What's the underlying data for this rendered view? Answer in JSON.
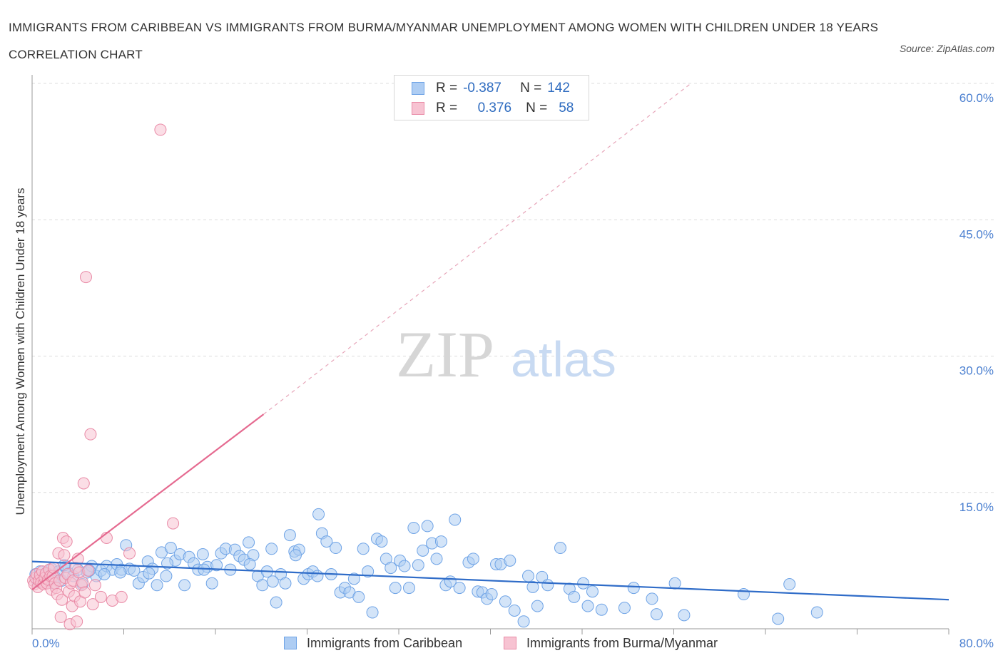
{
  "chart_data": {
    "type": "scatter",
    "title": "IMMIGRANTS FROM CARIBBEAN VS IMMIGRANTS FROM BURMA/MYANMAR UNEMPLOYMENT AMONG WOMEN WITH CHILDREN UNDER 18 YEARS CORRELATION CHART",
    "source": "Source: ZipAtlas.com",
    "ylabel": "Unemployment Among Women with Children Under 18 years",
    "xlim": [
      0,
      80
    ],
    "ylim": [
      0,
      60
    ],
    "x_tick_labels": {
      "left": "0.0%",
      "right": "80.0%"
    },
    "y_ticks": [
      15,
      30,
      45,
      60
    ],
    "y_tick_labels": [
      "15.0%",
      "30.0%",
      "45.0%",
      "60.0%"
    ],
    "watermark": {
      "zip": "ZIP",
      "atlas": "atlas"
    },
    "legend": [
      {
        "r_label": "R =",
        "r_value": "-0.387",
        "n_label": "N =",
        "n_value": "142"
      },
      {
        "r_label": "R =",
        "r_value": "0.376",
        "n_label": "N =",
        "n_value": "58"
      }
    ],
    "series": [
      {
        "name": "Immigrants from Caribbean",
        "color": "#6ea3e6",
        "fill": "#aecdf3",
        "trend": {
          "x0": 0,
          "y0": 7.4,
          "x1": 80,
          "y1": 3.2,
          "color": "#2f6cc8"
        },
        "points": [
          [
            0.3,
            6.0
          ],
          [
            0.5,
            5.2
          ],
          [
            0.7,
            6.3
          ],
          [
            0.9,
            5.5
          ],
          [
            1.1,
            5.9
          ],
          [
            1.3,
            6.1
          ],
          [
            1.5,
            5.4
          ],
          [
            1.7,
            6.6
          ],
          [
            2.0,
            5.7
          ],
          [
            2.3,
            6.3
          ],
          [
            2.6,
            5.3
          ],
          [
            2.9,
            6.8
          ],
          [
            3.2,
            6.1
          ],
          [
            3.6,
            5.8
          ],
          [
            4.0,
            6.5
          ],
          [
            4.4,
            4.9
          ],
          [
            4.8,
            6.2
          ],
          [
            5.2,
            6.9
          ],
          [
            5.6,
            5.8
          ],
          [
            6.0,
            6.4
          ],
          [
            6.5,
            6.9
          ],
          [
            7.0,
            6.5
          ],
          [
            7.4,
            7.1
          ],
          [
            7.8,
            6.5
          ],
          [
            8.2,
            9.2
          ],
          [
            8.5,
            6.6
          ],
          [
            8.9,
            6.4
          ],
          [
            9.3,
            5.0
          ],
          [
            9.7,
            5.7
          ],
          [
            10.1,
            7.4
          ],
          [
            10.5,
            6.6
          ],
          [
            10.9,
            4.8
          ],
          [
            11.3,
            8.4
          ],
          [
            11.7,
            5.8
          ],
          [
            12.1,
            8.9
          ],
          [
            12.5,
            7.5
          ],
          [
            12.9,
            8.2
          ],
          [
            13.3,
            4.8
          ],
          [
            13.7,
            7.9
          ],
          [
            14.1,
            7.2
          ],
          [
            14.5,
            6.5
          ],
          [
            14.9,
            8.2
          ],
          [
            15.3,
            6.8
          ],
          [
            15.7,
            5.0
          ],
          [
            16.1,
            7.0
          ],
          [
            16.5,
            8.3
          ],
          [
            16.9,
            8.8
          ],
          [
            17.3,
            6.5
          ],
          [
            17.7,
            8.7
          ],
          [
            18.1,
            8.0
          ],
          [
            18.5,
            7.6
          ],
          [
            18.9,
            9.5
          ],
          [
            19.3,
            8.1
          ],
          [
            19.7,
            5.8
          ],
          [
            20.1,
            4.8
          ],
          [
            20.5,
            6.3
          ],
          [
            20.9,
            8.8
          ],
          [
            21.3,
            2.9
          ],
          [
            21.7,
            6.0
          ],
          [
            22.1,
            5.0
          ],
          [
            22.5,
            10.3
          ],
          [
            22.9,
            8.5
          ],
          [
            23.3,
            8.7
          ],
          [
            23.7,
            5.5
          ],
          [
            24.1,
            6.0
          ],
          [
            24.5,
            6.3
          ],
          [
            24.9,
            5.8
          ],
          [
            25.3,
            10.5
          ],
          [
            25.7,
            9.6
          ],
          [
            26.1,
            6.0
          ],
          [
            26.5,
            8.9
          ],
          [
            26.9,
            4.0
          ],
          [
            27.3,
            4.5
          ],
          [
            27.7,
            4.0
          ],
          [
            28.1,
            5.5
          ],
          [
            28.5,
            3.5
          ],
          [
            28.9,
            8.8
          ],
          [
            29.3,
            6.3
          ],
          [
            29.7,
            1.8
          ],
          [
            30.1,
            9.9
          ],
          [
            30.5,
            9.6
          ],
          [
            30.9,
            7.7
          ],
          [
            31.3,
            6.7
          ],
          [
            31.7,
            4.5
          ],
          [
            32.1,
            7.5
          ],
          [
            32.5,
            6.9
          ],
          [
            32.9,
            4.5
          ],
          [
            33.3,
            11.1
          ],
          [
            33.7,
            7.0
          ],
          [
            34.1,
            8.6
          ],
          [
            34.5,
            11.3
          ],
          [
            34.9,
            9.4
          ],
          [
            35.3,
            7.7
          ],
          [
            35.7,
            9.6
          ],
          [
            36.1,
            4.8
          ],
          [
            36.5,
            5.2
          ],
          [
            36.9,
            12.0
          ],
          [
            37.3,
            4.5
          ],
          [
            38.1,
            7.3
          ],
          [
            38.5,
            7.7
          ],
          [
            38.9,
            4.1
          ],
          [
            39.3,
            4.0
          ],
          [
            39.7,
            3.3
          ],
          [
            40.1,
            3.8
          ],
          [
            40.5,
            7.1
          ],
          [
            40.9,
            7.1
          ],
          [
            41.3,
            3.0
          ],
          [
            41.7,
            7.5
          ],
          [
            42.1,
            2.0
          ],
          [
            42.9,
            0.8
          ],
          [
            43.3,
            5.8
          ],
          [
            43.7,
            4.6
          ],
          [
            44.1,
            2.5
          ],
          [
            44.5,
            5.7
          ],
          [
            45.0,
            4.8
          ],
          [
            46.1,
            8.9
          ],
          [
            46.9,
            4.4
          ],
          [
            47.3,
            3.5
          ],
          [
            48.1,
            5.0
          ],
          [
            48.5,
            2.5
          ],
          [
            48.9,
            4.1
          ],
          [
            49.7,
            2.1
          ],
          [
            51.7,
            2.3
          ],
          [
            52.5,
            4.5
          ],
          [
            54.1,
            3.3
          ],
          [
            54.5,
            1.6
          ],
          [
            56.1,
            5.0
          ],
          [
            56.9,
            1.5
          ],
          [
            62.1,
            3.8
          ],
          [
            65.1,
            1.1
          ],
          [
            66.1,
            4.9
          ],
          [
            68.5,
            1.8
          ],
          [
            23.0,
            8.1
          ],
          [
            25.0,
            12.6
          ],
          [
            15.0,
            6.5
          ],
          [
            19.0,
            7.1
          ],
          [
            21.0,
            5.2
          ],
          [
            10.2,
            6.1
          ],
          [
            7.7,
            6.2
          ],
          [
            11.8,
            7.2
          ],
          [
            6.3,
            6.0
          ],
          [
            5.0,
            6.4
          ],
          [
            2.8,
            7.0
          ],
          [
            1.9,
            5.0
          ]
        ]
      },
      {
        "name": "Immigrants from Burma/Myanmar",
        "color": "#e98aa6",
        "fill": "#f7c3d2",
        "trend": {
          "x0": 0,
          "y0": 4.3,
          "x1": 20.2,
          "y1": 23.6,
          "color": "#e56a90",
          "dash_to": {
            "x": 57.5,
            "y": 60
          }
        },
        "points": [
          [
            0.1,
            5.3
          ],
          [
            0.2,
            4.9
          ],
          [
            0.3,
            5.6
          ],
          [
            0.4,
            6.0
          ],
          [
            0.5,
            4.6
          ],
          [
            0.6,
            5.3
          ],
          [
            0.7,
            5.9
          ],
          [
            0.8,
            5.1
          ],
          [
            0.9,
            6.3
          ],
          [
            1.0,
            4.9
          ],
          [
            1.1,
            5.6
          ],
          [
            1.2,
            6.1
          ],
          [
            1.3,
            5.0
          ],
          [
            1.4,
            5.4
          ],
          [
            1.5,
            6.5
          ],
          [
            1.6,
            5.8
          ],
          [
            1.7,
            4.3
          ],
          [
            1.8,
            5.8
          ],
          [
            1.9,
            6.7
          ],
          [
            2.0,
            5.0
          ],
          [
            2.1,
            4.5
          ],
          [
            2.2,
            3.8
          ],
          [
            2.3,
            8.3
          ],
          [
            2.4,
            5.3
          ],
          [
            2.5,
            1.3
          ],
          [
            2.6,
            3.2
          ],
          [
            2.7,
            10.0
          ],
          [
            2.8,
            8.1
          ],
          [
            2.9,
            5.6
          ],
          [
            3.0,
            9.6
          ],
          [
            3.1,
            6.0
          ],
          [
            3.2,
            4.1
          ],
          [
            3.3,
            0.5
          ],
          [
            3.4,
            5.0
          ],
          [
            3.5,
            2.5
          ],
          [
            3.6,
            5.3
          ],
          [
            3.7,
            3.6
          ],
          [
            3.8,
            6.7
          ],
          [
            3.9,
            0.8
          ],
          [
            4.0,
            7.7
          ],
          [
            4.1,
            6.2
          ],
          [
            4.2,
            3.0
          ],
          [
            4.3,
            4.8
          ],
          [
            4.4,
            5.1
          ],
          [
            4.5,
            16.0
          ],
          [
            4.6,
            4.0
          ],
          [
            4.7,
            38.7
          ],
          [
            4.9,
            6.4
          ],
          [
            5.1,
            21.4
          ],
          [
            5.3,
            2.7
          ],
          [
            5.5,
            4.8
          ],
          [
            6.0,
            3.5
          ],
          [
            6.5,
            10.0
          ],
          [
            7.0,
            3.1
          ],
          [
            7.8,
            3.5
          ],
          [
            8.5,
            8.3
          ],
          [
            12.3,
            11.6
          ],
          [
            11.2,
            54.9
          ]
        ]
      }
    ]
  }
}
